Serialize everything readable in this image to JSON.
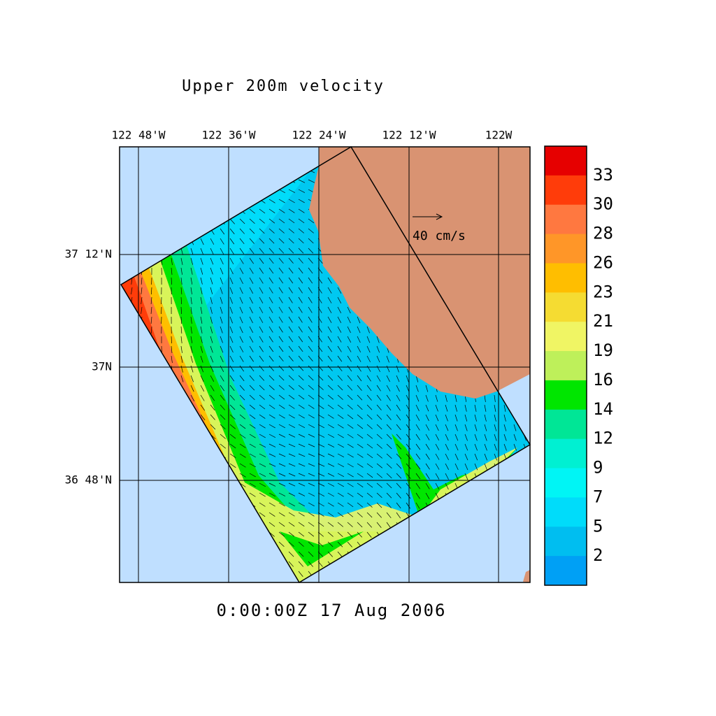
{
  "title": "Upper 200m velocity",
  "lon_labels": [
    "122 48'W",
    "122 36'W",
    "122 24'W",
    "122 12'W",
    "122W"
  ],
  "lat_labels": [
    "37 12'N",
    "37N",
    "36 48'N"
  ],
  "scale_label": "40 cm/s",
  "timestamp": "0:00:00Z  17 Aug 2006",
  "colorbar": {
    "levels": [
      33,
      30,
      28,
      26,
      23,
      21,
      19,
      16,
      14,
      12,
      9,
      7,
      5,
      2
    ],
    "colors": [
      "#e60000",
      "#ff3c0a",
      "#ff7840",
      "#ff9628",
      "#ffbe00",
      "#f5dc32",
      "#f0f564",
      "#bef05a",
      "#00e600",
      "#00e696",
      "#00f0d2",
      "#00f5f5",
      "#00dcfa",
      "#00bef0",
      "#00a0f5"
    ]
  }
}
